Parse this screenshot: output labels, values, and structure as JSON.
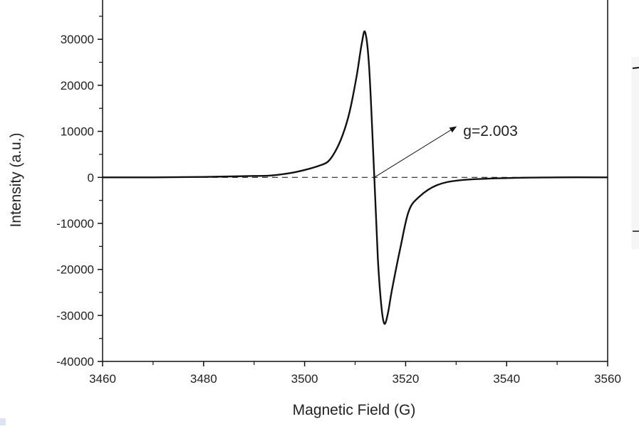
{
  "chart_data": {
    "type": "line",
    "title": "",
    "xlabel": "Magnetic Field (G)",
    "ylabel": "Intensity (a.u.)",
    "xlim": [
      3460,
      3560
    ],
    "ylim": [
      -40000,
      38500
    ],
    "xticks": [
      3460,
      3480,
      3500,
      3520,
      3540,
      3560
    ],
    "xtick_labels": [
      "3460",
      "3480",
      "3500",
      "3520",
      "3540",
      "3560"
    ],
    "yticks": [
      -40000,
      -30000,
      -20000,
      -10000,
      0,
      10000,
      20000,
      30000
    ],
    "ytick_labels": [
      "-40000",
      "-30000",
      "-20000",
      "-10000",
      "0",
      "10000",
      "20000",
      "30000"
    ],
    "grid": false,
    "legend": "none",
    "series": [
      {
        "color": "#111111",
        "x": [
          3460,
          3470,
          3480,
          3490,
          3493.3,
          3497,
          3500,
          3502.8,
          3504.6,
          3506,
          3507.5,
          3508.9,
          3510.3,
          3511.3,
          3512,
          3512.8,
          3513.8,
          3514.5,
          3515.2,
          3515.8,
          3516.5,
          3517.3,
          3519,
          3520.6,
          3522.6,
          3526.2,
          3531,
          3540,
          3550,
          3560
        ],
        "y": [
          0,
          0,
          100,
          300,
          400,
          900,
          1600,
          2500,
          3400,
          5500,
          9100,
          14200,
          22000,
          29000,
          31500,
          23500,
          0,
          -17600,
          -28000,
          -31800,
          -29500,
          -24400,
          -15100,
          -7400,
          -4300,
          -1700,
          -600,
          -150,
          0,
          0
        ]
      }
    ],
    "reference_line": {
      "y": 0,
      "style": "dashed"
    },
    "annotations": [
      {
        "text": "g=2.003",
        "arrow_from": [
          3513.8,
          0
        ],
        "arrow_to": [
          3530,
          11000
        ]
      }
    ]
  }
}
